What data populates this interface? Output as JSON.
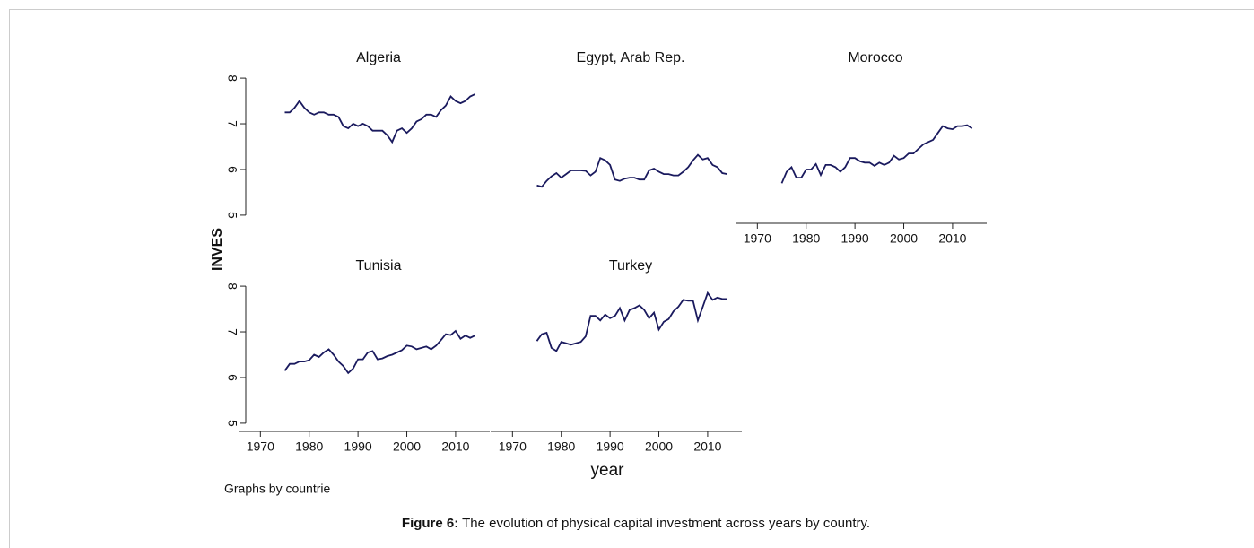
{
  "figure": {
    "ylabel": "INVES",
    "xlabel": "year",
    "note": "Graphs by countrie",
    "caption_label": "Figure 6:",
    "caption": " The evolution of physical capital investment across years by country."
  },
  "chart_data": [
    {
      "type": "line",
      "title": "Algeria",
      "color": "#1a1a5e",
      "xlim": [
        1967,
        2017
      ],
      "ylim": [
        4.9,
        8.1
      ],
      "yticks": [
        5,
        6,
        7,
        8
      ],
      "x": [
        1975,
        1976,
        1977,
        1978,
        1979,
        1980,
        1981,
        1982,
        1983,
        1984,
        1985,
        1986,
        1987,
        1988,
        1989,
        1990,
        1991,
        1992,
        1993,
        1994,
        1995,
        1996,
        1997,
        1998,
        1999,
        2000,
        2001,
        2002,
        2003,
        2004,
        2005,
        2006,
        2007,
        2008,
        2009,
        2010,
        2011,
        2012,
        2013,
        2014
      ],
      "values": [
        7.25,
        7.25,
        7.35,
        7.5,
        7.35,
        7.25,
        7.2,
        7.25,
        7.25,
        7.2,
        7.2,
        7.15,
        6.95,
        6.9,
        7.0,
        6.95,
        7.0,
        6.95,
        6.85,
        6.85,
        6.85,
        6.75,
        6.6,
        6.85,
        6.9,
        6.8,
        6.9,
        7.05,
        7.1,
        7.2,
        7.2,
        7.15,
        7.3,
        7.4,
        7.6,
        7.5,
        7.45,
        7.5,
        7.6,
        7.65
      ]
    },
    {
      "type": "line",
      "title": "Egypt, Arab Rep.",
      "color": "#1a1a5e",
      "xlim": [
        1967,
        2017
      ],
      "ylim": [
        4.9,
        8.1
      ],
      "x": [
        1975,
        1976,
        1977,
        1978,
        1979,
        1980,
        1981,
        1982,
        1983,
        1984,
        1985,
        1986,
        1987,
        1988,
        1989,
        1990,
        1991,
        1992,
        1993,
        1994,
        1995,
        1996,
        1997,
        1998,
        1999,
        2000,
        2001,
        2002,
        2003,
        2004,
        2005,
        2006,
        2007,
        2008,
        2009,
        2010,
        2011,
        2012,
        2013,
        2014
      ],
      "values": [
        5.65,
        5.62,
        5.75,
        5.85,
        5.92,
        5.82,
        5.9,
        5.98,
        5.98,
        5.98,
        5.97,
        5.87,
        5.95,
        6.25,
        6.2,
        6.1,
        5.78,
        5.75,
        5.8,
        5.82,
        5.82,
        5.78,
        5.78,
        5.98,
        6.02,
        5.95,
        5.9,
        5.9,
        5.87,
        5.87,
        5.95,
        6.05,
        6.2,
        6.32,
        6.22,
        6.25,
        6.1,
        6.05,
        5.92,
        5.9
      ]
    },
    {
      "type": "line",
      "title": "Morocco",
      "color": "#1a1a5e",
      "xlim": [
        1967,
        2017
      ],
      "ylim": [
        4.9,
        8.1
      ],
      "xticks": [
        1970,
        1980,
        1990,
        2000,
        2010
      ],
      "x": [
        1975,
        1976,
        1977,
        1978,
        1979,
        1980,
        1981,
        1982,
        1983,
        1984,
        1985,
        1986,
        1987,
        1988,
        1989,
        1990,
        1991,
        1992,
        1993,
        1994,
        1995,
        1996,
        1997,
        1998,
        1999,
        2000,
        2001,
        2002,
        2003,
        2004,
        2005,
        2006,
        2007,
        2008,
        2009,
        2010,
        2011,
        2012,
        2013,
        2014
      ],
      "values": [
        5.7,
        5.95,
        6.05,
        5.82,
        5.82,
        6.0,
        6.0,
        6.12,
        5.88,
        6.1,
        6.1,
        6.05,
        5.95,
        6.05,
        6.25,
        6.25,
        6.18,
        6.15,
        6.15,
        6.08,
        6.15,
        6.1,
        6.15,
        6.3,
        6.22,
        6.25,
        6.35,
        6.35,
        6.45,
        6.55,
        6.6,
        6.65,
        6.8,
        6.95,
        6.9,
        6.88,
        6.95,
        6.95,
        6.97,
        6.9
      ]
    },
    {
      "type": "line",
      "title": "Tunisia",
      "color": "#1a1a5e",
      "xlim": [
        1967,
        2017
      ],
      "ylim": [
        4.9,
        8.1
      ],
      "yticks": [
        5,
        6,
        7,
        8
      ],
      "xticks": [
        1970,
        1980,
        1990,
        2000,
        2010
      ],
      "x": [
        1975,
        1976,
        1977,
        1978,
        1979,
        1980,
        1981,
        1982,
        1983,
        1984,
        1985,
        1986,
        1987,
        1988,
        1989,
        1990,
        1991,
        1992,
        1993,
        1994,
        1995,
        1996,
        1997,
        1998,
        1999,
        2000,
        2001,
        2002,
        2003,
        2004,
        2005,
        2006,
        2007,
        2008,
        2009,
        2010,
        2011,
        2012,
        2013,
        2014
      ],
      "values": [
        6.15,
        6.3,
        6.3,
        6.35,
        6.35,
        6.38,
        6.5,
        6.45,
        6.55,
        6.62,
        6.5,
        6.35,
        6.25,
        6.1,
        6.2,
        6.4,
        6.4,
        6.55,
        6.58,
        6.4,
        6.42,
        6.47,
        6.5,
        6.55,
        6.6,
        6.7,
        6.68,
        6.62,
        6.65,
        6.68,
        6.62,
        6.7,
        6.82,
        6.95,
        6.93,
        7.02,
        6.85,
        6.92,
        6.87,
        6.92
      ]
    },
    {
      "type": "line",
      "title": "Turkey",
      "color": "#1a1a5e",
      "xlim": [
        1967,
        2017
      ],
      "ylim": [
        4.9,
        8.1
      ],
      "xticks": [
        1970,
        1980,
        1990,
        2000,
        2010
      ],
      "x": [
        1975,
        1976,
        1977,
        1978,
        1979,
        1980,
        1981,
        1982,
        1983,
        1984,
        1985,
        1986,
        1987,
        1988,
        1989,
        1990,
        1991,
        1992,
        1993,
        1994,
        1995,
        1996,
        1997,
        1998,
        1999,
        2000,
        2001,
        2002,
        2003,
        2004,
        2005,
        2006,
        2007,
        2008,
        2009,
        2010,
        2011,
        2012,
        2013,
        2014
      ],
      "values": [
        6.8,
        6.95,
        6.98,
        6.65,
        6.58,
        6.78,
        6.75,
        6.72,
        6.75,
        6.78,
        6.9,
        7.35,
        7.35,
        7.25,
        7.38,
        7.3,
        7.35,
        7.52,
        7.25,
        7.48,
        7.52,
        7.58,
        7.48,
        7.3,
        7.42,
        7.05,
        7.22,
        7.28,
        7.45,
        7.55,
        7.7,
        7.68,
        7.68,
        7.25,
        7.55,
        7.85,
        7.7,
        7.75,
        7.72,
        7.72
      ]
    }
  ]
}
